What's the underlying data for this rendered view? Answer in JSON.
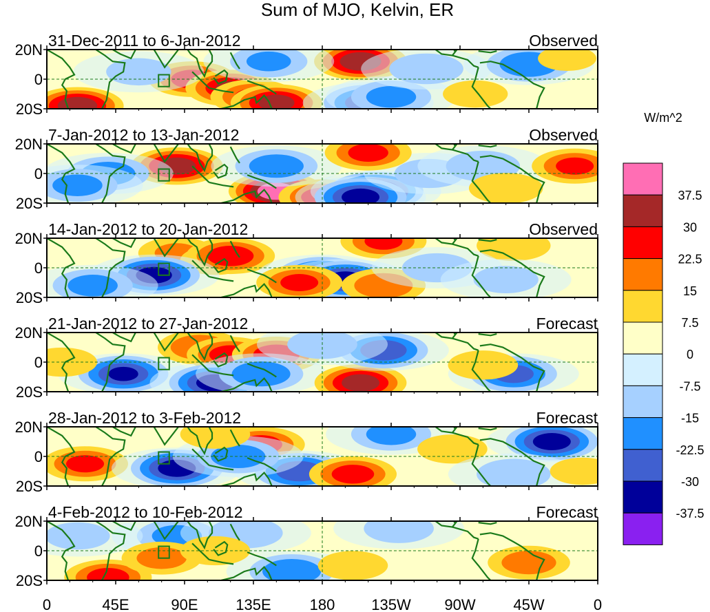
{
  "chart_data": {
    "type": "heatmap",
    "title": "Sum of MJO, Kelvin, ER",
    "colorbar": {
      "units": "W/m^2",
      "levels": [
        "37.5",
        "30",
        "22.5",
        "15",
        "7.5",
        "0",
        "-7.5",
        "-15",
        "-22.5",
        "-30",
        "-37.5"
      ],
      "level_values": [
        37.5,
        30,
        22.5,
        15,
        7.5,
        0,
        -7.5,
        -15,
        -22.5,
        -30,
        -37.5
      ],
      "colors": [
        "#ff6eb4",
        "#a52828",
        "#ff0000",
        "#ff7a00",
        "#ffd830",
        "#ffffc8",
        "#d4f0ff",
        "#a6d0ff",
        "#2090ff",
        "#4060d0",
        "#00009a",
        "#8a20f0"
      ]
    },
    "x_axis": {
      "tick_labels": [
        "0",
        "45E",
        "90E",
        "135E",
        "180",
        "135W",
        "90W",
        "45W",
        "0"
      ],
      "tick_lons": [
        0,
        45,
        90,
        135,
        180,
        225,
        270,
        315,
        360
      ],
      "range": [
        0,
        360
      ]
    },
    "y_axis": {
      "tick_labels": [
        "20N",
        "0",
        "20S"
      ],
      "tick_lats": [
        20,
        0,
        -20
      ],
      "range": [
        -20,
        20
      ]
    },
    "panels": [
      {
        "period": "31-Dec-2011 to 6-Jan-2012",
        "kind": "Observed",
        "anomalies": [
          {
            "lon": 95,
            "lat": 0,
            "val": 26
          },
          {
            "lon": 120,
            "lat": -6,
            "val": 30
          },
          {
            "lon": 135,
            "lat": -12,
            "val": 24
          },
          {
            "lon": 150,
            "lat": -16,
            "val": 33
          },
          {
            "lon": 20,
            "lat": -18,
            "val": 35
          },
          {
            "lon": 205,
            "lat": 12,
            "val": 36
          },
          {
            "lon": 210,
            "lat": -16,
            "val": -28
          },
          {
            "lon": 225,
            "lat": -12,
            "val": -18
          },
          {
            "lon": 145,
            "lat": 12,
            "val": -16
          },
          {
            "lon": 248,
            "lat": 7,
            "val": -14
          },
          {
            "lon": 315,
            "lat": 10,
            "val": -22
          },
          {
            "lon": 60,
            "lat": 5,
            "val": -10
          },
          {
            "lon": 280,
            "lat": -10,
            "val": 10
          },
          {
            "lon": 340,
            "lat": 14,
            "val": 8
          }
        ]
      },
      {
        "period": "7-Jan-2012 to 13-Jan-2012",
        "kind": "Observed",
        "anomalies": [
          {
            "lon": 85,
            "lat": 5,
            "val": 34
          },
          {
            "lon": 150,
            "lat": -12,
            "val": 44
          },
          {
            "lon": 180,
            "lat": -16,
            "val": 26
          },
          {
            "lon": 215,
            "lat": -12,
            "val": -42
          },
          {
            "lon": 205,
            "lat": -16,
            "val": -34
          },
          {
            "lon": 40,
            "lat": 0,
            "val": -20
          },
          {
            "lon": 20,
            "lat": -8,
            "val": -18
          },
          {
            "lon": 150,
            "lat": 5,
            "val": -20
          },
          {
            "lon": 250,
            "lat": 0,
            "val": -12
          },
          {
            "lon": 285,
            "lat": 5,
            "val": -14
          },
          {
            "lon": 210,
            "lat": 14,
            "val": 25
          },
          {
            "lon": 300,
            "lat": -10,
            "val": 14
          },
          {
            "lon": 345,
            "lat": 5,
            "val": 24
          }
        ]
      },
      {
        "period": "14-Jan-2012 to 20-Jan-2012",
        "kind": "Observed",
        "anomalies": [
          {
            "lon": 85,
            "lat": 10,
            "val": 16
          },
          {
            "lon": 110,
            "lat": 5,
            "val": 12
          },
          {
            "lon": 120,
            "lat": 8,
            "val": 28
          },
          {
            "lon": 70,
            "lat": -5,
            "val": -33
          },
          {
            "lon": 180,
            "lat": -5,
            "val": -30
          },
          {
            "lon": 195,
            "lat": -8,
            "val": -33
          },
          {
            "lon": 165,
            "lat": -10,
            "val": 24
          },
          {
            "lon": 220,
            "lat": 18,
            "val": 24
          },
          {
            "lon": 220,
            "lat": -12,
            "val": 22
          },
          {
            "lon": 305,
            "lat": 15,
            "val": 14
          },
          {
            "lon": 30,
            "lat": -12,
            "val": -18
          },
          {
            "lon": 255,
            "lat": 0,
            "val": -12
          },
          {
            "lon": 300,
            "lat": -8,
            "val": -10
          }
        ]
      },
      {
        "period": "21-Jan-2012 to 27-Jan-2012",
        "kind": "Forecast",
        "anomalies": [
          {
            "lon": 100,
            "lat": 10,
            "val": 22
          },
          {
            "lon": 120,
            "lat": 5,
            "val": 26
          },
          {
            "lon": 150,
            "lat": 5,
            "val": 28
          },
          {
            "lon": 50,
            "lat": -8,
            "val": -30
          },
          {
            "lon": 110,
            "lat": -14,
            "val": -34
          },
          {
            "lon": 140,
            "lat": -8,
            "val": -22
          },
          {
            "lon": 205,
            "lat": -14,
            "val": 34
          },
          {
            "lon": 220,
            "lat": 8,
            "val": -28
          },
          {
            "lon": 305,
            "lat": -8,
            "val": -25
          },
          {
            "lon": 180,
            "lat": 12,
            "val": -12
          },
          {
            "lon": 10,
            "lat": 0,
            "val": 12
          },
          {
            "lon": 285,
            "lat": -2,
            "val": 12
          }
        ]
      },
      {
        "period": "28-Jan-2012 to 3-Feb-2012",
        "kind": "Forecast",
        "anomalies": [
          {
            "lon": 25,
            "lat": -5,
            "val": 24
          },
          {
            "lon": 85,
            "lat": -8,
            "val": -34
          },
          {
            "lon": 140,
            "lat": 8,
            "val": 26
          },
          {
            "lon": 165,
            "lat": -10,
            "val": -28
          },
          {
            "lon": 200,
            "lat": -12,
            "val": 26
          },
          {
            "lon": 330,
            "lat": 10,
            "val": -34
          },
          {
            "lon": 125,
            "lat": 0,
            "val": -20
          },
          {
            "lon": 110,
            "lat": 15,
            "val": 12
          },
          {
            "lon": 225,
            "lat": 15,
            "val": -18
          },
          {
            "lon": 265,
            "lat": 5,
            "val": 12
          },
          {
            "lon": 305,
            "lat": -12,
            "val": -14
          },
          {
            "lon": 350,
            "lat": -10,
            "val": 10
          }
        ]
      },
      {
        "period": "4-Feb-2012 to 10-Feb-2012",
        "kind": "Forecast",
        "anomalies": [
          {
            "lon": 85,
            "lat": 10,
            "val": -18
          },
          {
            "lon": 130,
            "lat": 12,
            "val": -14
          },
          {
            "lon": 40,
            "lat": -18,
            "val": 26
          },
          {
            "lon": 75,
            "lat": -5,
            "val": 18
          },
          {
            "lon": 160,
            "lat": -14,
            "val": -22
          },
          {
            "lon": 110,
            "lat": 0,
            "val": 12
          },
          {
            "lon": 315,
            "lat": -8,
            "val": 20
          },
          {
            "lon": 230,
            "lat": 15,
            "val": -12
          },
          {
            "lon": 200,
            "lat": -10,
            "val": 12
          },
          {
            "lon": 20,
            "lat": 10,
            "val": -10
          }
        ]
      }
    ]
  }
}
